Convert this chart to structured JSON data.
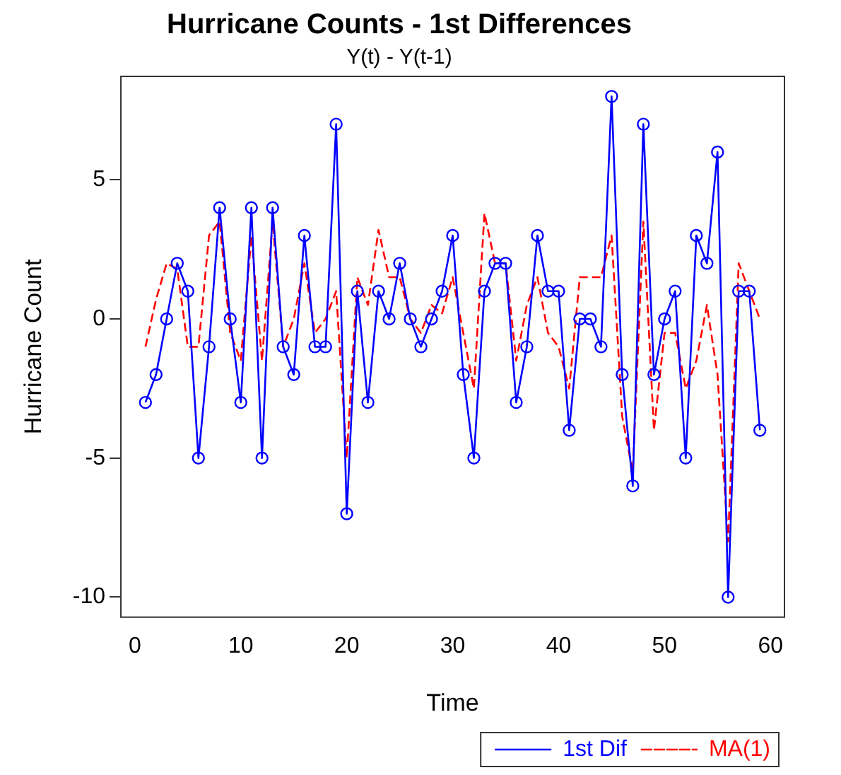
{
  "chart_data": {
    "type": "line",
    "title": "Hurricane Counts - 1st Differences",
    "subtitle": "Y(t) - Y(t-1)",
    "xlabel": "Time",
    "ylabel": "Hurricane Count",
    "x": [
      1,
      2,
      3,
      4,
      5,
      6,
      7,
      8,
      9,
      10,
      11,
      12,
      13,
      14,
      15,
      16,
      17,
      18,
      19,
      20,
      21,
      22,
      23,
      24,
      25,
      26,
      27,
      28,
      29,
      30,
      31,
      32,
      33,
      34,
      35,
      36,
      37,
      38,
      39,
      40,
      41,
      42,
      43,
      44,
      45,
      46,
      47,
      48,
      49,
      50,
      51,
      52,
      53,
      54,
      55,
      56,
      57,
      58,
      59
    ],
    "series": [
      {
        "name": "1st Dif",
        "color": "#0000ff",
        "marker": "circle",
        "line_style": "solid",
        "values": [
          -3,
          -2,
          0,
          2,
          1,
          -5,
          -1,
          4,
          0,
          -3,
          4,
          -5,
          4,
          -1,
          -2,
          3,
          -1,
          -1,
          7,
          -7,
          1,
          -3,
          1,
          0,
          2,
          0,
          -1,
          0,
          1,
          3,
          -2,
          -5,
          1,
          2,
          2,
          -3,
          -1,
          3,
          1,
          1,
          -4,
          0,
          0,
          -1,
          8,
          -2,
          -6,
          7,
          -2,
          0,
          1,
          -5,
          3,
          2,
          6,
          -10,
          1,
          1,
          -4
        ]
      },
      {
        "name": "MA(1)",
        "color": "#ff0000",
        "marker": "none",
        "line_style": "dashed",
        "values": [
          -1,
          0.7,
          2,
          1.8,
          -1,
          -1,
          3,
          3.5,
          -0.5,
          -1.5,
          3,
          -1.5,
          3.5,
          -1,
          0,
          2,
          -0.5,
          0,
          1,
          -5,
          1.5,
          0.5,
          3.2,
          1.5,
          1.5,
          0,
          -0.5,
          0.5,
          0.2,
          1.5,
          -0.5,
          -2.5,
          3.8,
          2,
          2,
          -1.5,
          0.5,
          1.5,
          -0.5,
          -1,
          -2.5,
          1.5,
          1.5,
          1.5,
          3,
          -3.5,
          -5.5,
          3.5,
          -4,
          -0.5,
          -0.5,
          -2.5,
          -1.5,
          0.5,
          -2,
          -8,
          2,
          1,
          0
        ]
      }
    ],
    "xlim": [
      -1.32,
      61.32
    ],
    "xticks": [
      0,
      10,
      20,
      30,
      40,
      50,
      60
    ],
    "ylim": [
      -10.72,
      8.72
    ],
    "yticks": [
      -10,
      -5,
      0,
      5
    ],
    "grid": false,
    "legend": "bottom right"
  }
}
